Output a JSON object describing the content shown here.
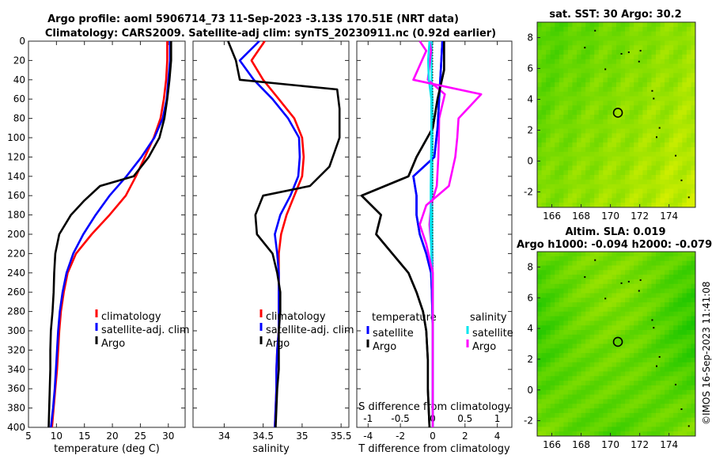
{
  "title": {
    "line1": "Argo profile: aoml 5906714_73 11-Sep-2023 -3.13S 170.51E (NRT data)",
    "line2": "Climatology: CARS2009. Satellite-adj clim: synTS_20230911.nc (0.92d earlier)"
  },
  "watermark": "©IMOS 16-Sep-2023 11:41:08",
  "colors": {
    "climatology": "#ff0000",
    "satellite": "#0000ff",
    "argo": "#000000",
    "sat_salinity": "#00e5ee",
    "argo_salinity": "#ff00ff",
    "map_high": "#d8f000",
    "map_low": "#00c000"
  },
  "chart_data": [
    {
      "type": "line",
      "name": "temperature-profile",
      "xlabel": "temperature (deg C)",
      "ylabel": "",
      "xlim": [
        5,
        33
      ],
      "ylim": [
        400,
        0
      ],
      "xticks": [
        "5",
        "10",
        "15",
        "20",
        "25",
        "30"
      ],
      "yticks": [
        "0",
        "20",
        "40",
        "60",
        "80",
        "100",
        "120",
        "140",
        "160",
        "180",
        "200",
        "220",
        "240",
        "260",
        "280",
        "300",
        "320",
        "340",
        "360",
        "380",
        "400"
      ],
      "legend": [
        "climatology",
        "satellite-adj. clim",
        "Argo"
      ],
      "series": [
        {
          "name": "climatology",
          "color_key": "climatology",
          "points": [
            [
              29.8,
              0
            ],
            [
              29.8,
              20
            ],
            [
              29.6,
              40
            ],
            [
              29.2,
              60
            ],
            [
              28.6,
              80
            ],
            [
              27.4,
              100
            ],
            [
              25.8,
              120
            ],
            [
              24.2,
              140
            ],
            [
              22.4,
              160
            ],
            [
              19.5,
              180
            ],
            [
              16.3,
              200
            ],
            [
              13.5,
              220
            ],
            [
              12.0,
              240
            ],
            [
              11.3,
              260
            ],
            [
              10.8,
              280
            ],
            [
              10.5,
              300
            ],
            [
              10.3,
              320
            ],
            [
              10.1,
              340
            ],
            [
              9.8,
              360
            ],
            [
              9.5,
              380
            ],
            [
              9.2,
              400
            ]
          ]
        },
        {
          "name": "satellite-adj. clim",
          "color_key": "satellite",
          "points": [
            [
              30.3,
              0
            ],
            [
              30.3,
              20
            ],
            [
              30.0,
              40
            ],
            [
              29.7,
              60
            ],
            [
              29.0,
              80
            ],
            [
              27.5,
              100
            ],
            [
              25.2,
              120
            ],
            [
              22.5,
              140
            ],
            [
              19.5,
              160
            ],
            [
              17.0,
              180
            ],
            [
              14.8,
              200
            ],
            [
              13.0,
              220
            ],
            [
              11.8,
              240
            ],
            [
              11.1,
              260
            ],
            [
              10.6,
              280
            ],
            [
              10.3,
              300
            ],
            [
              10.1,
              320
            ],
            [
              9.9,
              340
            ],
            [
              9.7,
              360
            ],
            [
              9.4,
              380
            ],
            [
              9.0,
              400
            ]
          ]
        },
        {
          "name": "Argo",
          "color_key": "argo",
          "points": [
            [
              30.5,
              0
            ],
            [
              30.5,
              20
            ],
            [
              30.2,
              40
            ],
            [
              29.8,
              60
            ],
            [
              29.3,
              80
            ],
            [
              28.4,
              100
            ],
            [
              26.5,
              120
            ],
            [
              23.8,
              140
            ],
            [
              17.8,
              150
            ],
            [
              15.0,
              165
            ],
            [
              12.6,
              180
            ],
            [
              10.5,
              200
            ],
            [
              9.8,
              220
            ],
            [
              9.6,
              240
            ],
            [
              9.5,
              260
            ],
            [
              9.3,
              280
            ],
            [
              9.0,
              300
            ],
            [
              8.9,
              320
            ],
            [
              8.9,
              340
            ],
            [
              8.8,
              360
            ],
            [
              8.7,
              380
            ],
            [
              8.6,
              400
            ]
          ]
        }
      ]
    },
    {
      "type": "line",
      "name": "salinity-profile",
      "xlabel": "salinity",
      "xlim": [
        33.6,
        35.6
      ],
      "ylim": [
        400,
        0
      ],
      "xticks": [
        "34",
        "34.5",
        "35",
        "35.5"
      ],
      "legend": [
        "climatology",
        "satellite-adj. clim",
        "Argo"
      ],
      "series": [
        {
          "name": "climatology",
          "color_key": "climatology",
          "points": [
            [
              34.52,
              0
            ],
            [
              34.35,
              20
            ],
            [
              34.5,
              40
            ],
            [
              34.7,
              60
            ],
            [
              34.9,
              80
            ],
            [
              35.0,
              100
            ],
            [
              35.02,
              120
            ],
            [
              35.0,
              140
            ],
            [
              34.9,
              160
            ],
            [
              34.8,
              180
            ],
            [
              34.73,
              200
            ],
            [
              34.7,
              220
            ],
            [
              34.7,
              240
            ],
            [
              34.7,
              260
            ],
            [
              34.7,
              280
            ],
            [
              34.7,
              300
            ],
            [
              34.68,
              320
            ],
            [
              34.67,
              340
            ],
            [
              34.67,
              360
            ],
            [
              34.66,
              380
            ],
            [
              34.65,
              400
            ]
          ]
        },
        {
          "name": "satellite-adj. clim",
          "color_key": "satellite",
          "points": [
            [
              34.45,
              0
            ],
            [
              34.2,
              20
            ],
            [
              34.38,
              40
            ],
            [
              34.62,
              60
            ],
            [
              34.82,
              80
            ],
            [
              34.96,
              100
            ],
            [
              34.97,
              120
            ],
            [
              34.95,
              140
            ],
            [
              34.85,
              160
            ],
            [
              34.72,
              180
            ],
            [
              34.65,
              200
            ],
            [
              34.68,
              220
            ],
            [
              34.7,
              240
            ],
            [
              34.7,
              260
            ],
            [
              34.7,
              280
            ],
            [
              34.7,
              300
            ],
            [
              34.68,
              320
            ],
            [
              34.67,
              340
            ],
            [
              34.67,
              360
            ],
            [
              34.66,
              380
            ],
            [
              34.65,
              400
            ]
          ]
        },
        {
          "name": "Argo",
          "color_key": "argo",
          "points": [
            [
              34.05,
              0
            ],
            [
              34.15,
              20
            ],
            [
              34.2,
              40
            ],
            [
              35.45,
              50
            ],
            [
              35.48,
              70
            ],
            [
              35.48,
              100
            ],
            [
              35.35,
              130
            ],
            [
              35.1,
              150
            ],
            [
              34.5,
              160
            ],
            [
              34.4,
              180
            ],
            [
              34.42,
              200
            ],
            [
              34.62,
              220
            ],
            [
              34.68,
              240
            ],
            [
              34.72,
              260
            ],
            [
              34.72,
              280
            ],
            [
              34.7,
              300
            ],
            [
              34.7,
              320
            ],
            [
              34.7,
              340
            ],
            [
              34.68,
              360
            ],
            [
              34.67,
              380
            ],
            [
              34.66,
              400
            ]
          ]
        }
      ]
    },
    {
      "type": "line",
      "name": "difference-profile",
      "xlabel": "T difference from climatology",
      "xlabel_top": "S difference from climatology",
      "xlim": [
        -4.7,
        4.9
      ],
      "ylim": [
        400,
        0
      ],
      "xticks": [
        "-4",
        "-2",
        "0",
        "2",
        "4"
      ],
      "xticks_top": [
        "-1",
        "-0.5",
        "0",
        "0.5",
        "1"
      ],
      "legend_title_left": "temperature",
      "legend_title_right": "salinity",
      "legend_left": [
        "satellite",
        "Argo"
      ],
      "legend_right": [
        "satellite",
        "Argo"
      ],
      "series": [
        {
          "name": "temperature satellite",
          "color_key": "satellite",
          "points": [
            [
              0.6,
              0
            ],
            [
              0.5,
              30
            ],
            [
              0.4,
              60
            ],
            [
              0.3,
              90
            ],
            [
              0.1,
              120
            ],
            [
              -1.2,
              140
            ],
            [
              -1.0,
              160
            ],
            [
              -1.0,
              180
            ],
            [
              -0.8,
              200
            ],
            [
              -0.4,
              220
            ],
            [
              -0.1,
              240
            ],
            [
              -0.05,
              260
            ],
            [
              0,
              300
            ],
            [
              0,
              340
            ],
            [
              0,
              400
            ]
          ]
        },
        {
          "name": "temperature Argo",
          "color_key": "argo",
          "points": [
            [
              0.7,
              0
            ],
            [
              0.7,
              30
            ],
            [
              0.3,
              60
            ],
            [
              0.0,
              90
            ],
            [
              -1.0,
              120
            ],
            [
              -1.5,
              140
            ],
            [
              -4.4,
              160
            ],
            [
              -3.2,
              180
            ],
            [
              -3.5,
              200
            ],
            [
              -2.5,
              220
            ],
            [
              -1.5,
              240
            ],
            [
              -1.0,
              260
            ],
            [
              -0.6,
              280
            ],
            [
              -0.4,
              300
            ],
            [
              -0.3,
              330
            ],
            [
              -0.3,
              360
            ],
            [
              -0.2,
              400
            ]
          ]
        },
        {
          "name": "salinity satellite",
          "color_key": "sat_salinity",
          "points": [
            [
              -0.05,
              0
            ],
            [
              -0.07,
              20
            ],
            [
              -0.06,
              40
            ],
            [
              -0.02,
              60
            ],
            [
              -0.02,
              100
            ],
            [
              -0.03,
              150
            ],
            [
              -0.03,
              200
            ],
            [
              0,
              260
            ],
            [
              0,
              400
            ]
          ]
        },
        {
          "name": "salinity Argo",
          "color_key": "argo_salinity",
          "points": [
            [
              -0.2,
              0
            ],
            [
              -0.1,
              10
            ],
            [
              -0.3,
              40
            ],
            [
              0.75,
              55
            ],
            [
              0.4,
              80
            ],
            [
              0.38,
              100
            ],
            [
              0.35,
              120
            ],
            [
              0.25,
              150
            ],
            [
              -0.1,
              170
            ],
            [
              -0.2,
              190
            ],
            [
              -0.1,
              210
            ],
            [
              0,
              240
            ],
            [
              0,
              300
            ],
            [
              0,
              400
            ]
          ]
        }
      ]
    },
    {
      "type": "heatmap",
      "name": "sst-map",
      "title": "sat. SST: 30 Argo: 30.2",
      "xlim": [
        165,
        175.8
      ],
      "ylim": [
        -3,
        9
      ],
      "xticks": [
        "166",
        "168",
        "170",
        "172",
        "174"
      ],
      "yticks": [
        "-2",
        "0",
        "2",
        "4",
        "6",
        "8"
      ],
      "argo_position": [
        170.51,
        3.13
      ]
    },
    {
      "type": "heatmap",
      "name": "sla-map",
      "title_line1": "Altim. SLA: 0.019",
      "title_line2": "Argo h1000: -0.094 h2000: -0.079",
      "xlim": [
        165,
        175.8
      ],
      "ylim": [
        -3,
        9
      ],
      "xticks": [
        "166",
        "168",
        "170",
        "172",
        "174"
      ],
      "yticks": [
        "-2",
        "0",
        "2",
        "4",
        "6",
        "8"
      ],
      "argo_position": [
        170.51,
        3.13
      ]
    }
  ]
}
